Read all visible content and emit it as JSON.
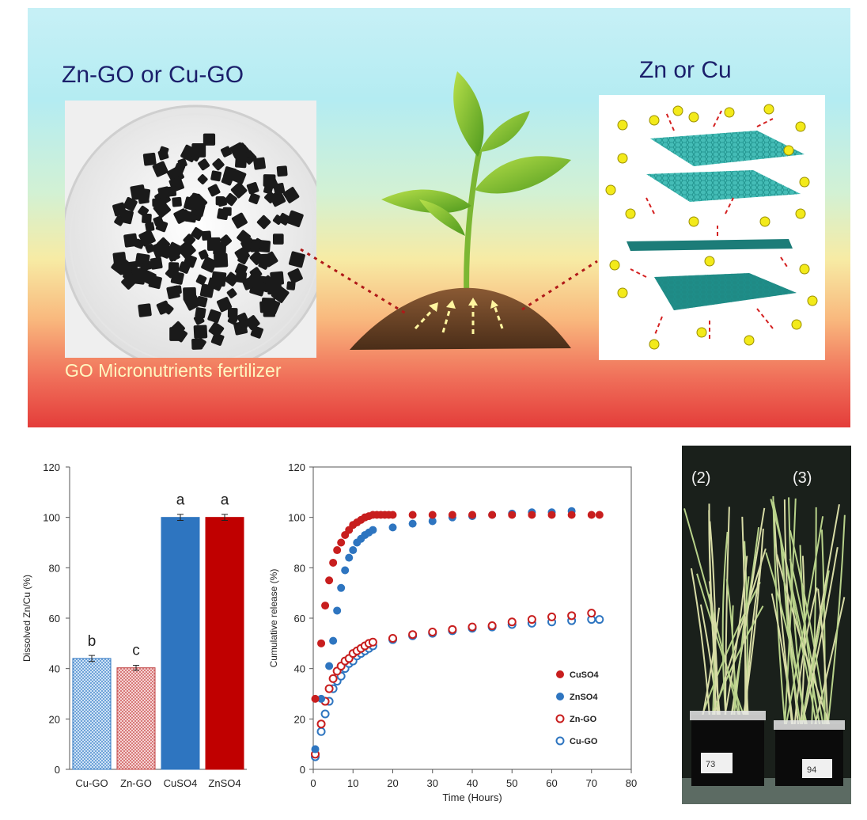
{
  "banner": {
    "title_left": "Zn-GO or Cu-GO",
    "title_right": "Zn or Cu",
    "caption": "GO Micronutrients fertilizer"
  },
  "colors": {
    "cu_go": "#9cc3e8",
    "zn_go": "#e7a8a8",
    "cuso4": "#2e75c0",
    "znso4": "#c00000",
    "red_marker": "#c81e1e",
    "blue_marker": "#2e75c0",
    "graphene": "#2aa9a5",
    "ion": "#f3ea1a"
  },
  "wheat_photo": {
    "labels": [
      "(2)",
      "(3)"
    ],
    "pot_labels": [
      "73",
      "94"
    ]
  },
  "chart_data": [
    {
      "type": "bar",
      "categories": [
        "Cu-GO",
        "Zn-GO",
        "CuSO4",
        "ZnSO4"
      ],
      "values": [
        44,
        40.3,
        100,
        100
      ],
      "errors": [
        1.2,
        1.0,
        1.2,
        1.2
      ],
      "letters": [
        "b",
        "c",
        "a",
        "a"
      ],
      "ylabel": "Dissolved Zn/Cu  (%)",
      "ylim": [
        0,
        120
      ],
      "yticks": [
        "0",
        "20",
        "40",
        "60",
        "80",
        "100",
        "120"
      ],
      "grid": false
    },
    {
      "type": "scatter",
      "xlabel": "Time (Hours)",
      "ylabel": "Cumulative release (%)",
      "xlim": [
        0,
        80
      ],
      "ylim": [
        0,
        120
      ],
      "xticks": [
        "0",
        "10",
        "20",
        "30",
        "40",
        "50",
        "60",
        "70",
        "80"
      ],
      "yticks": [
        "0",
        "20",
        "40",
        "60",
        "80",
        "100",
        "120"
      ],
      "legend_position": "right",
      "series": [
        {
          "name": "CuSO4",
          "marker": "filled",
          "color": "#c81e1e",
          "points": [
            [
              0.5,
              28
            ],
            [
              2,
              50
            ],
            [
              3,
              65
            ],
            [
              4,
              75
            ],
            [
              5,
              82
            ],
            [
              6,
              87
            ],
            [
              7,
              90
            ],
            [
              8,
              93
            ],
            [
              9,
              95
            ],
            [
              10,
              97
            ],
            [
              11,
              98
            ],
            [
              12,
              99
            ],
            [
              13,
              100
            ],
            [
              14,
              100.5
            ],
            [
              15,
              101
            ],
            [
              16,
              101
            ],
            [
              17,
              101
            ],
            [
              18,
              101
            ],
            [
              19,
              101
            ],
            [
              20,
              101
            ],
            [
              25,
              101
            ],
            [
              30,
              101
            ],
            [
              35,
              101
            ],
            [
              40,
              101
            ],
            [
              45,
              101
            ],
            [
              50,
              101
            ],
            [
              55,
              101
            ],
            [
              60,
              101
            ],
            [
              65,
              101
            ],
            [
              70,
              101
            ],
            [
              72,
              101
            ]
          ]
        },
        {
          "name": "ZnSO4",
          "marker": "filled",
          "color": "#2e75c0",
          "points": [
            [
              0.5,
              8
            ],
            [
              2,
              28
            ],
            [
              4,
              41
            ],
            [
              5,
              51
            ],
            [
              6,
              63
            ],
            [
              7,
              72
            ],
            [
              8,
              79
            ],
            [
              9,
              84
            ],
            [
              10,
              87
            ],
            [
              11,
              90
            ],
            [
              12,
              91.5
            ],
            [
              13,
              93
            ],
            [
              14,
              94
            ],
            [
              15,
              95
            ],
            [
              20,
              96
            ],
            [
              25,
              97.5
            ],
            [
              30,
              98.5
            ],
            [
              35,
              100
            ],
            [
              40,
              100.5
            ],
            [
              45,
              101
            ],
            [
              50,
              101.5
            ],
            [
              55,
              102
            ],
            [
              60,
              102
            ],
            [
              65,
              102.5
            ]
          ]
        },
        {
          "name": "Zn-GO",
          "marker": "open",
          "color": "#c81e1e",
          "points": [
            [
              0.5,
              6
            ],
            [
              2,
              18
            ],
            [
              3,
              27
            ],
            [
              4,
              32
            ],
            [
              5,
              36
            ],
            [
              6,
              39
            ],
            [
              7,
              41
            ],
            [
              8,
              43
            ],
            [
              9,
              44
            ],
            [
              10,
              46
            ],
            [
              11,
              47
            ],
            [
              12,
              48
            ],
            [
              13,
              49
            ],
            [
              14,
              50
            ],
            [
              15,
              50.5
            ],
            [
              20,
              52
            ],
            [
              25,
              53.5
            ],
            [
              30,
              54.5
            ],
            [
              35,
              55.5
            ],
            [
              40,
              56.5
            ],
            [
              45,
              57
            ],
            [
              50,
              58.5
            ],
            [
              55,
              59.5
            ],
            [
              60,
              60.5
            ],
            [
              65,
              61
            ],
            [
              70,
              62
            ]
          ]
        },
        {
          "name": "Cu-GO",
          "marker": "open",
          "color": "#2e75c0",
          "points": [
            [
              0.5,
              5
            ],
            [
              2,
              15
            ],
            [
              3,
              22
            ],
            [
              4,
              27
            ],
            [
              5,
              32
            ],
            [
              6,
              35
            ],
            [
              7,
              37
            ],
            [
              8,
              40
            ],
            [
              9,
              42
            ],
            [
              10,
              43
            ],
            [
              11,
              45
            ],
            [
              12,
              46
            ],
            [
              13,
              47
            ],
            [
              14,
              48
            ],
            [
              15,
              49
            ],
            [
              20,
              51.5
            ],
            [
              25,
              53
            ],
            [
              30,
              54
            ],
            [
              35,
              55
            ],
            [
              40,
              56
            ],
            [
              45,
              56.5
            ],
            [
              50,
              57.5
            ],
            [
              55,
              58
            ],
            [
              60,
              58.5
            ],
            [
              65,
              59
            ],
            [
              70,
              59.5
            ],
            [
              72,
              59.5
            ]
          ]
        }
      ]
    }
  ]
}
